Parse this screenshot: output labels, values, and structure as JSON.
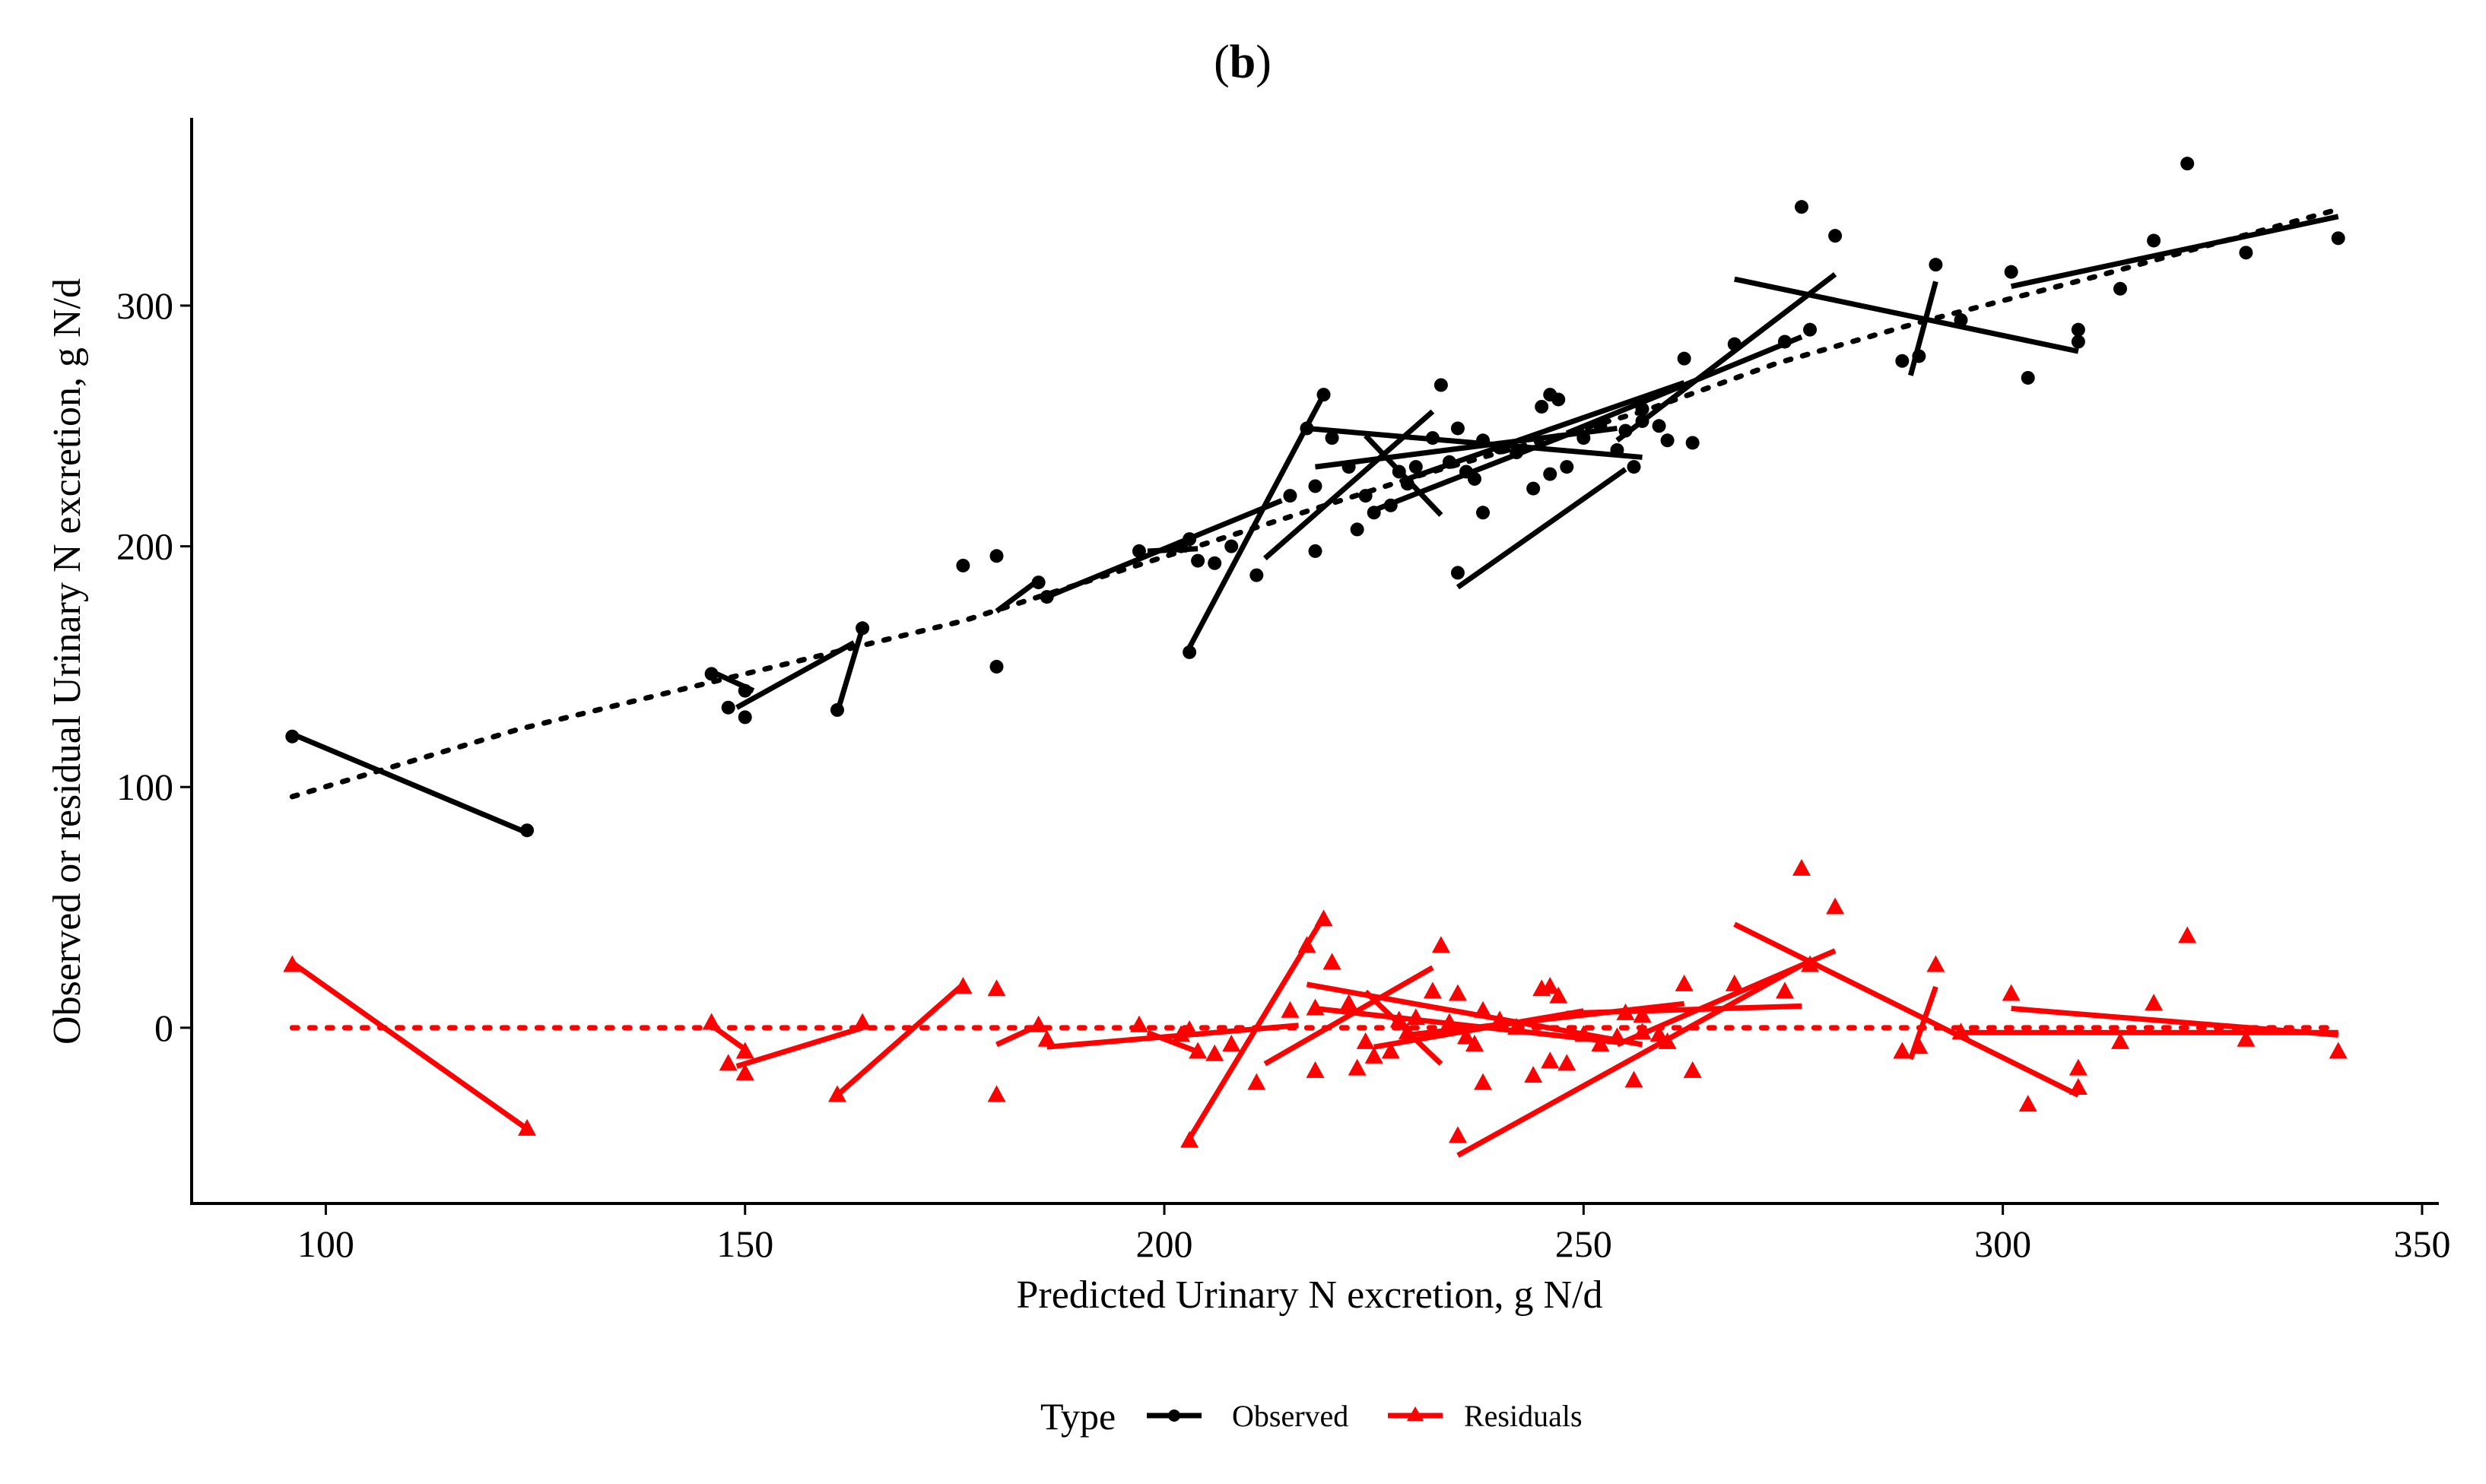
{
  "chart_data": {
    "type": "scatter",
    "title_open": "(",
    "title_letter": "b",
    "title_close": ")",
    "xlabel": "Predicted Urinary N excretion, g N/d",
    "ylabel": "Observed or residual Urinary N excretion, g N/d",
    "xlim": [
      84,
      352
    ],
    "ylim": [
      -73,
      378
    ],
    "x_ticks": [
      "100",
      "150",
      "200",
      "250",
      "300",
      "350"
    ],
    "y_ticks": [
      "0",
      "100",
      "200",
      "300"
    ],
    "legend": {
      "title": "Type",
      "position": "bottom",
      "entries": [
        {
          "label": "Observed",
          "color": "#000000",
          "marker": "circle"
        },
        {
          "label": "Residuals",
          "color": "#ff0000",
          "marker": "triangle"
        }
      ]
    },
    "series": [
      {
        "name": "Observed",
        "color": "#000000",
        "marker": "circle",
        "points": [
          [
            96,
            121
          ],
          [
            124,
            82
          ],
          [
            146,
            147
          ],
          [
            148,
            133
          ],
          [
            150,
            129
          ],
          [
            150,
            140
          ],
          [
            161,
            132
          ],
          [
            164,
            166
          ],
          [
            176,
            192
          ],
          [
            180,
            150
          ],
          [
            180,
            196
          ],
          [
            185,
            185
          ],
          [
            186,
            179
          ],
          [
            197,
            198
          ],
          [
            202,
            200
          ],
          [
            203,
            156
          ],
          [
            203,
            203
          ],
          [
            204,
            194
          ],
          [
            206,
            193
          ],
          [
            208,
            200
          ],
          [
            211,
            188
          ],
          [
            215,
            221
          ],
          [
            217,
            249
          ],
          [
            218,
            225
          ],
          [
            218,
            198
          ],
          [
            219,
            263
          ],
          [
            220,
            245
          ],
          [
            222,
            233
          ],
          [
            223,
            207
          ],
          [
            224,
            221
          ],
          [
            225,
            214
          ],
          [
            227,
            217
          ],
          [
            228,
            231
          ],
          [
            229,
            226
          ],
          [
            230,
            233
          ],
          [
            232,
            245
          ],
          [
            233,
            267
          ],
          [
            234,
            235
          ],
          [
            235,
            189
          ],
          [
            235,
            249
          ],
          [
            236,
            231
          ],
          [
            237,
            228
          ],
          [
            238,
            214
          ],
          [
            238,
            244
          ],
          [
            240,
            241
          ],
          [
            242,
            239
          ],
          [
            244,
            224
          ],
          [
            245,
            258
          ],
          [
            246,
            263
          ],
          [
            246,
            230
          ],
          [
            247,
            261
          ],
          [
            248,
            233
          ],
          [
            250,
            245
          ],
          [
            252,
            250
          ],
          [
            254,
            240
          ],
          [
            255,
            248
          ],
          [
            256,
            233
          ],
          [
            257,
            257
          ],
          [
            257,
            252
          ],
          [
            259,
            250
          ],
          [
            260,
            244
          ],
          [
            262,
            278
          ],
          [
            263,
            243
          ],
          [
            268,
            284
          ],
          [
            274,
            285
          ],
          [
            276,
            341
          ],
          [
            277,
            290
          ],
          [
            280,
            329
          ],
          [
            288,
            277
          ],
          [
            290,
            279
          ],
          [
            292,
            317
          ],
          [
            295,
            294
          ],
          [
            301,
            314
          ],
          [
            303,
            270
          ],
          [
            309,
            285
          ],
          [
            309,
            290
          ],
          [
            314,
            307
          ],
          [
            318,
            327
          ],
          [
            322,
            359
          ],
          [
            329,
            322
          ],
          [
            340,
            328
          ]
        ],
        "segments": [
          [
            [
              96,
              122
            ],
            [
              124,
              81
            ]
          ],
          [
            [
              146,
              148
            ],
            [
              151,
              140
            ]
          ],
          [
            [
              149,
              133
            ],
            [
              163,
              160
            ]
          ],
          [
            [
              161,
              131
            ],
            [
              164,
              166
            ]
          ],
          [
            [
              176,
              191
            ],
            [
              176,
              191
            ]
          ],
          [
            [
              180,
              173
            ],
            [
              185,
              186
            ]
          ],
          [
            [
              186,
              179
            ],
            [
              214,
              219
            ]
          ],
          [
            [
              198,
              198
            ],
            [
              204,
              199
            ]
          ],
          [
            [
              203,
              158
            ],
            [
              219,
              263
            ]
          ],
          [
            [
              212,
              195
            ],
            [
              232,
              256
            ]
          ],
          [
            [
              217,
              249
            ],
            [
              257,
              237
            ]
          ],
          [
            [
              218,
              233
            ],
            [
              254,
              249
            ]
          ],
          [
            [
              224,
              246
            ],
            [
              233,
              213
            ]
          ],
          [
            [
              225,
              215
            ],
            [
              250,
              249
            ]
          ],
          [
            [
              229,
              228
            ],
            [
              262,
              268
            ]
          ],
          [
            [
              235,
              183
            ],
            [
              255,
              232
            ]
          ],
          [
            [
              248,
              247
            ],
            [
              276,
              287
            ]
          ],
          [
            [
              254,
              244
            ],
            [
              280,
              313
            ]
          ],
          [
            [
              268,
              311
            ],
            [
              309,
              281
            ]
          ],
          [
            [
              289,
              271
            ],
            [
              292,
              310
            ]
          ],
          [
            [
              301,
              308
            ],
            [
              340,
              337
            ]
          ]
        ],
        "regression": [
          [
            96,
            96
          ],
          [
            123,
            124
          ],
          [
            150,
            147
          ],
          [
            176,
            169
          ],
          [
            203,
            199
          ],
          [
            230,
            229
          ],
          [
            257,
            256
          ],
          [
            273,
            276
          ],
          [
            290,
            293
          ],
          [
            311,
            312
          ],
          [
            340,
            340
          ]
        ]
      },
      {
        "name": "Residuals",
        "color": "#ff0000",
        "marker": "triangle",
        "points": [
          [
            96,
            26
          ],
          [
            124,
            -42
          ],
          [
            146,
            2
          ],
          [
            148,
            -15
          ],
          [
            150,
            -19
          ],
          [
            150,
            -10
          ],
          [
            161,
            -28
          ],
          [
            164,
            2
          ],
          [
            176,
            17
          ],
          [
            180,
            -28
          ],
          [
            180,
            16
          ],
          [
            185,
            1
          ],
          [
            186,
            -5
          ],
          [
            197,
            1
          ],
          [
            202,
            -3
          ],
          [
            203,
            -47
          ],
          [
            203,
            -1
          ],
          [
            204,
            -10
          ],
          [
            206,
            -11
          ],
          [
            208,
            -7
          ],
          [
            211,
            -23
          ],
          [
            215,
            7
          ],
          [
            217,
            34
          ],
          [
            218,
            8
          ],
          [
            218,
            -18
          ],
          [
            219,
            45
          ],
          [
            220,
            27
          ],
          [
            222,
            10
          ],
          [
            223,
            -17
          ],
          [
            224,
            -6
          ],
          [
            225,
            -12
          ],
          [
            227,
            -10
          ],
          [
            228,
            3
          ],
          [
            229,
            -2
          ],
          [
            230,
            4
          ],
          [
            232,
            15
          ],
          [
            233,
            34
          ],
          [
            234,
            2
          ],
          [
            235,
            -45
          ],
          [
            235,
            14
          ],
          [
            236,
            -4
          ],
          [
            237,
            -7
          ],
          [
            238,
            -23
          ],
          [
            238,
            7
          ],
          [
            240,
            3
          ],
          [
            242,
            0
          ],
          [
            244,
            -20
          ],
          [
            245,
            16
          ],
          [
            246,
            17
          ],
          [
            246,
            -14
          ],
          [
            247,
            13
          ],
          [
            248,
            -15
          ],
          [
            250,
            -3
          ],
          [
            252,
            -7
          ],
          [
            254,
            -4
          ],
          [
            255,
            6
          ],
          [
            256,
            -22
          ],
          [
            257,
            5
          ],
          [
            257,
            -2
          ],
          [
            259,
            -3
          ],
          [
            260,
            -6
          ],
          [
            262,
            18
          ],
          [
            263,
            -18
          ],
          [
            268,
            18
          ],
          [
            274,
            15
          ],
          [
            276,
            66
          ],
          [
            277,
            26
          ],
          [
            280,
            50
          ],
          [
            288,
            -10
          ],
          [
            290,
            -8
          ],
          [
            292,
            26
          ],
          [
            295,
            -2
          ],
          [
            301,
            14
          ],
          [
            303,
            -32
          ],
          [
            309,
            -17
          ],
          [
            309,
            -25
          ],
          [
            314,
            -6
          ],
          [
            318,
            10
          ],
          [
            322,
            38
          ],
          [
            329,
            -5
          ],
          [
            340,
            -10
          ]
        ],
        "segments": [
          [
            [
              96,
              27
            ],
            [
              124,
              -42
            ]
          ],
          [
            [
              146,
              1
            ],
            [
              150,
              -9
            ]
          ],
          [
            [
              149,
              -16
            ],
            [
              164,
              0
            ]
          ],
          [
            [
              161,
              -28
            ],
            [
              176,
              18
            ]
          ],
          [
            [
              180,
              -7
            ],
            [
              185,
              1
            ]
          ],
          [
            [
              186,
              -8
            ],
            [
              216,
              1
            ]
          ],
          [
            [
              198,
              -2
            ],
            [
              204,
              -10
            ]
          ],
          [
            [
              203,
              -46
            ],
            [
              219,
              46
            ]
          ],
          [
            [
              212,
              -15
            ],
            [
              232,
              25
            ]
          ],
          [
            [
              217,
              18
            ],
            [
              257,
              -7
            ]
          ],
          [
            [
              218,
              8
            ],
            [
              254,
              -6
            ]
          ],
          [
            [
              224,
              15
            ],
            [
              233,
              -15
            ]
          ],
          [
            [
              225,
              -8
            ],
            [
              250,
              7
            ]
          ],
          [
            [
              229,
              -3
            ],
            [
              262,
              10
            ]
          ],
          [
            [
              235,
              -53
            ],
            [
              276,
              26
            ]
          ],
          [
            [
              248,
              6
            ],
            [
              276,
              9
            ]
          ],
          [
            [
              254,
              -7
            ],
            [
              280,
              32
            ]
          ],
          [
            [
              268,
              43
            ],
            [
              309,
              -28
            ]
          ],
          [
            [
              289,
              -13
            ],
            [
              292,
              17
            ]
          ],
          [
            [
              295,
              -2
            ],
            [
              340,
              -2
            ]
          ],
          [
            [
              301,
              8
            ],
            [
              340,
              -3
            ]
          ]
        ],
        "regression": [
          [
            96,
            0
          ],
          [
            340,
            0
          ]
        ]
      }
    ]
  }
}
